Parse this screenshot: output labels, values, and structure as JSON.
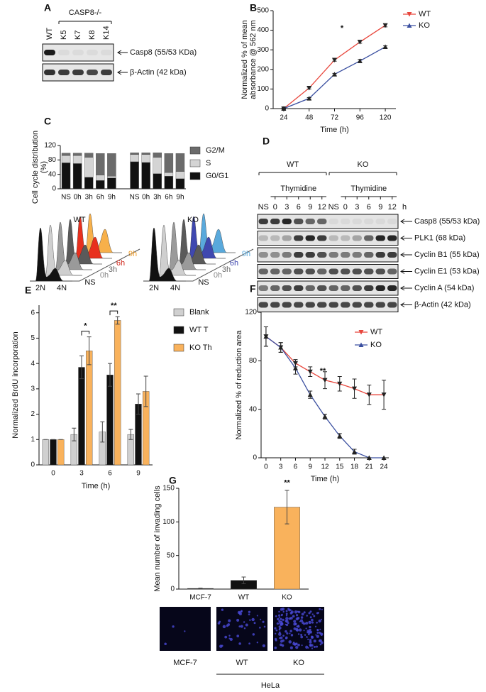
{
  "panel_labels": [
    "A",
    "B",
    "C",
    "D",
    "E",
    "F",
    "G"
  ],
  "blot_a": {
    "group": "CASP8-/-",
    "lanes": [
      "WT",
      "K5",
      "K7",
      "K8",
      "K14"
    ],
    "bands": [
      "Casp8 (55/53 KDa)",
      "β-Actin (42 kDa)"
    ]
  },
  "blot_d": {
    "groups": [
      "WT",
      "KO"
    ],
    "treatment": [
      "Thymidine",
      "Thymidine"
    ],
    "lanes": [
      "NS",
      "0",
      "3",
      "6",
      "9",
      "12",
      "NS",
      "0",
      "3",
      "6",
      "9",
      "12"
    ],
    "unit": "h",
    "bands": [
      "Casp8 (55/53 kDa)",
      "PLK1 (68 kDa)",
      "Cyclin B1 (55 kDa)",
      "Cyclin E1 (53 kDa)",
      "Cyclin A (54 kDa)",
      "β-Actin (42 kDa)"
    ]
  },
  "flow_c": [
    {
      "title": "WT",
      "labels": [
        "2N",
        "4N",
        "NS",
        "0h",
        "3h",
        "6h",
        "9h"
      ]
    },
    {
      "title": "KO",
      "labels": [
        "2N",
        "4N",
        "NS",
        "0h",
        "3h",
        "6h",
        "9h"
      ]
    }
  ],
  "images_g": {
    "labels": [
      "MCF-7",
      "WT",
      "KO"
    ],
    "group": "HeLa"
  },
  "chart_data": [
    {
      "type": "line",
      "y_label": [
        "Normalized % of mean",
        "absorbance @ 562 nm"
      ],
      "x_label": "Time (h)",
      "x": [
        24,
        48,
        72,
        96,
        120
      ],
      "xlim": [
        14,
        130
      ],
      "xticks": [
        24,
        48,
        72,
        96,
        120
      ],
      "ylim": [
        0,
        500
      ],
      "yticks": [
        0,
        100,
        200,
        300,
        400,
        500
      ],
      "legend": "outside right",
      "annotations": [
        "*"
      ],
      "series": [
        {
          "name": "WT",
          "color": "#e8463c",
          "marker": "triangle-down",
          "values": [
            0,
            105,
            248,
            340,
            425
          ],
          "errors": [
            3,
            5,
            6,
            6,
            8
          ]
        },
        {
          "name": "KO",
          "color": "#3a4fa0",
          "marker": "triangle-up",
          "values": [
            0,
            52,
            175,
            243,
            315
          ],
          "errors": [
            3,
            4,
            5,
            8,
            5
          ]
        }
      ]
    },
    {
      "type": "stacked",
      "y_label": [
        "Cell cycle distribution",
        "(%)"
      ],
      "categories": [
        "NS",
        "0h",
        "3h",
        "6h",
        "9h",
        "NS",
        "0h",
        "3h",
        "6h",
        "9h"
      ],
      "ylim": [
        0,
        120
      ],
      "yticks": [
        0,
        40,
        80,
        120
      ],
      "legend": "outside right",
      "series": [
        {
          "name": "G0/G1",
          "color": "#111111",
          "values": [
            72,
            70,
            32,
            23,
            30,
            75,
            73,
            42,
            35,
            28
          ]
        },
        {
          "name": "S",
          "color": "#d4d4d4",
          "values": [
            20,
            22,
            55,
            15,
            5,
            20,
            22,
            45,
            10,
            20
          ]
        },
        {
          "name": "G2/M",
          "color": "#6b6b6b",
          "values": [
            7,
            7,
            12,
            60,
            63,
            5,
            5,
            13,
            53,
            50
          ]
        }
      ]
    },
    {
      "type": "grouped",
      "y_label": [
        "Normalized BrdU incorporation"
      ],
      "x_label": "Time (h)",
      "categories": [
        "0",
        "3",
        "6",
        "9"
      ],
      "ylim": [
        0,
        6.3
      ],
      "yticks": [
        0,
        1,
        2,
        3,
        4,
        5,
        6
      ],
      "legend": "outside right",
      "annotations": [
        "*",
        "**"
      ],
      "series": [
        {
          "name": "Blank",
          "color": "#d0d0d0",
          "values": [
            1,
            1.2,
            1.3,
            1.2
          ],
          "errors": [
            0,
            0.25,
            0.4,
            0.2
          ]
        },
        {
          "name": "WT T",
          "color": "#111111",
          "values": [
            1,
            3.85,
            3.55,
            2.4
          ],
          "errors": [
            0,
            0.45,
            0.45,
            0.4
          ]
        },
        {
          "name": "KO Th",
          "color": "#f9b25c",
          "values": [
            1,
            4.5,
            5.7,
            2.9
          ],
          "errors": [
            0,
            0.55,
            0.15,
            0.6
          ]
        }
      ]
    },
    {
      "type": "line",
      "y_label": [
        "Normalized % of reduction area"
      ],
      "x_label": "Time (h)",
      "x": [
        0,
        3,
        6,
        9,
        12,
        15,
        18,
        21,
        24
      ],
      "xlim": [
        -1,
        25
      ],
      "xticks": [
        0,
        3,
        6,
        9,
        12,
        15,
        18,
        21,
        24
      ],
      "ylim": [
        0,
        120
      ],
      "yticks": [
        0,
        40,
        80,
        120
      ],
      "legend": "upper right",
      "annotations": [
        "**"
      ],
      "series": [
        {
          "name": "WT",
          "color": "#e8463c",
          "marker": "triangle-down",
          "values": [
            100,
            91,
            78,
            71,
            64,
            61,
            57,
            52,
            52
          ],
          "errors": [
            8,
            4,
            3,
            4,
            7,
            6,
            8,
            8,
            12
          ]
        },
        {
          "name": "KO",
          "color": "#3a4fa0",
          "marker": "triangle-up",
          "values": [
            100,
            91,
            74,
            52,
            34,
            18,
            5,
            0,
            0
          ],
          "errors": [
            8,
            4,
            5,
            3,
            2,
            2,
            2,
            0,
            0
          ]
        }
      ]
    },
    {
      "type": "bar",
      "y_label": [
        "Mean number of invading cells"
      ],
      "categories": [
        "MCF-7",
        "WT",
        "KO"
      ],
      "ylim": [
        0,
        150
      ],
      "yticks": [
        0,
        50,
        100,
        150
      ],
      "color": "#f9b25c",
      "colors": [
        "#111111",
        "#111111",
        "#f9b25c"
      ],
      "annotations": [
        "**"
      ],
      "values": [
        1,
        13,
        122
      ],
      "errors": [
        0.5,
        5,
        25
      ]
    }
  ]
}
